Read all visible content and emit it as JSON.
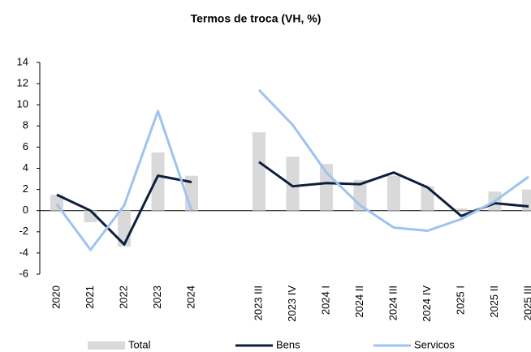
{
  "chart_data": {
    "type": "bar_line",
    "title": "Termos de troca (VH, %)",
    "categories": [
      "2020",
      "2021",
      "2022",
      "2023",
      "2024",
      null,
      "2023 III",
      "2023 IV",
      "2024 I",
      "2024 II",
      "2024 III",
      "2024 IV",
      "2025 I",
      "2025 II",
      "2025 III"
    ],
    "series": [
      {
        "name": "Total",
        "type": "bar",
        "color": "#d9d9d9",
        "values": [
          1.5,
          -1.1,
          -3.4,
          5.5,
          3.3,
          null,
          7.4,
          5.1,
          4.4,
          2.9,
          3.3,
          2.3,
          0.2,
          1.8,
          2.0
        ]
      },
      {
        "name": "Bens",
        "type": "line",
        "color": "#0d1f3c",
        "values": [
          1.5,
          0,
          -3.2,
          3.3,
          2.7,
          null,
          4.6,
          2.3,
          2.6,
          2.5,
          3.6,
          2.2,
          -0.5,
          0.7,
          0.4
        ]
      },
      {
        "name": "Servicos",
        "type": "line",
        "color": "#9dc3f0",
        "values": [
          0.6,
          -3.7,
          0.5,
          9.4,
          0,
          null,
          11.4,
          8.1,
          3.6,
          0.5,
          -1.6,
          -1.9,
          -0.8,
          0.9,
          3.2
        ]
      }
    ],
    "ylim": [
      -6,
      14
    ],
    "yticks": [
      -6,
      -4,
      -2,
      0,
      2,
      4,
      6,
      8,
      10,
      12,
      14
    ],
    "legend": "bottom"
  }
}
